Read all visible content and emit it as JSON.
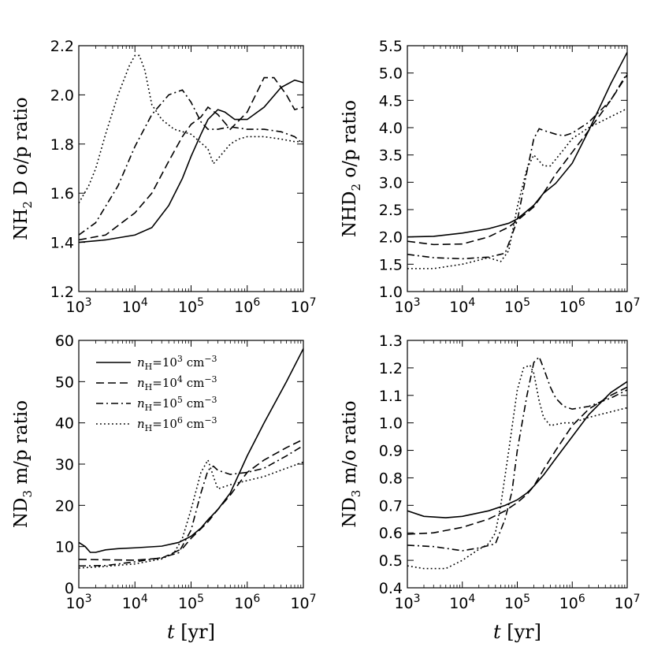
{
  "chart_data": [
    {
      "type": "line",
      "panel": "top-left",
      "xscale": "log",
      "xlim": [
        1000,
        10000000
      ],
      "xticks": [
        1000,
        10000,
        100000,
        1000000,
        10000000
      ],
      "x_tick_labels": [
        {
          "base": "10",
          "exp": "3"
        },
        {
          "base": "10",
          "exp": "4"
        },
        {
          "base": "10",
          "exp": "5"
        },
        {
          "base": "10",
          "exp": "6"
        },
        {
          "base": "10",
          "exp": "7"
        }
      ],
      "ylim": [
        1.2,
        2.2
      ],
      "yticks": [
        1.2,
        1.4,
        1.6,
        1.8,
        2.0,
        2.2
      ],
      "y_tick_labels": [
        "1.2",
        "1.4",
        "1.6",
        "1.8",
        "2.0",
        "2.2"
      ],
      "ylabel": {
        "pre": "NH",
        "sub": "2",
        "post": "D o/p ratio"
      },
      "xlabel": null,
      "series": [
        {
          "name": "nH=10^3 cm^-3",
          "style": "solid",
          "x": [
            1000,
            3000,
            10000,
            20000,
            40000,
            70000,
            100000,
            150000,
            200000,
            300000,
            400000,
            600000,
            1000000,
            2000000,
            4000000,
            7000000,
            10000000
          ],
          "y": [
            1.4,
            1.41,
            1.43,
            1.46,
            1.55,
            1.66,
            1.75,
            1.84,
            1.9,
            1.94,
            1.93,
            1.9,
            1.9,
            1.95,
            2.03,
            2.06,
            2.05
          ]
        },
        {
          "name": "nH=10^4 cm^-3",
          "style": "dashed",
          "x": [
            1000,
            3000,
            10000,
            20000,
            40000,
            70000,
            100000,
            150000,
            200000,
            300000,
            500000,
            1000000,
            2000000,
            3000000,
            5000000,
            7000000,
            10000000
          ],
          "y": [
            1.41,
            1.43,
            1.52,
            1.6,
            1.73,
            1.83,
            1.88,
            1.91,
            1.95,
            1.92,
            1.86,
            1.93,
            2.07,
            2.07,
            2.0,
            1.94,
            1.95
          ]
        },
        {
          "name": "nH=10^5 cm^-3",
          "style": "dashdot",
          "x": [
            1000,
            2000,
            5000,
            10000,
            20000,
            40000,
            70000,
            100000,
            150000,
            200000,
            300000,
            500000,
            1000000,
            2000000,
            4000000,
            7000000,
            10000000
          ],
          "y": [
            1.43,
            1.48,
            1.63,
            1.79,
            1.92,
            2.0,
            2.02,
            1.97,
            1.89,
            1.86,
            1.86,
            1.87,
            1.86,
            1.86,
            1.85,
            1.83,
            1.8
          ]
        },
        {
          "name": "nH=10^6 cm^-3",
          "style": "dotted",
          "x": [
            1000,
            1500,
            2000,
            3000,
            5000,
            8000,
            10000,
            12000,
            15000,
            20000,
            30000,
            50000,
            100000,
            200000,
            250000,
            300000,
            500000,
            700000,
            1000000,
            2000000,
            4000000,
            7000000,
            10000000
          ],
          "y": [
            1.56,
            1.63,
            1.7,
            1.84,
            2.0,
            2.12,
            2.16,
            2.16,
            2.1,
            1.96,
            1.9,
            1.86,
            1.84,
            1.78,
            1.72,
            1.74,
            1.8,
            1.82,
            1.83,
            1.83,
            1.82,
            1.81,
            1.81
          ]
        }
      ]
    },
    {
      "type": "line",
      "panel": "top-right",
      "xscale": "log",
      "xlim": [
        1000,
        10000000
      ],
      "xticks": [
        1000,
        10000,
        100000,
        1000000,
        10000000
      ],
      "x_tick_labels": [
        {
          "base": "10",
          "exp": "3"
        },
        {
          "base": "10",
          "exp": "4"
        },
        {
          "base": "10",
          "exp": "5"
        },
        {
          "base": "10",
          "exp": "6"
        },
        {
          "base": "10",
          "exp": "7"
        }
      ],
      "ylim": [
        1.0,
        5.5
      ],
      "yticks": [
        1.0,
        1.5,
        2.0,
        2.5,
        3.0,
        3.5,
        4.0,
        4.5,
        5.0,
        5.5
      ],
      "y_tick_labels": [
        "1.0",
        "1.5",
        "2.0",
        "2.5",
        "3.0",
        "3.5",
        "4.0",
        "4.5",
        "5.0",
        "5.5"
      ],
      "ylabel": {
        "pre": "NHD",
        "sub": "2",
        "post": "o/p ratio"
      },
      "xlabel": null,
      "series": [
        {
          "name": "nH=10^3 cm^-3",
          "style": "solid",
          "x": [
            1000,
            3000,
            10000,
            30000,
            70000,
            100000,
            200000,
            300000,
            500000,
            1000000,
            2000000,
            5000000,
            10000000
          ],
          "y": [
            2.0,
            2.01,
            2.07,
            2.15,
            2.25,
            2.33,
            2.58,
            2.8,
            2.98,
            3.35,
            3.95,
            4.8,
            5.38
          ]
        },
        {
          "name": "nH=10^4 cm^-3",
          "style": "dashed",
          "x": [
            1000,
            3000,
            10000,
            30000,
            70000,
            100000,
            200000,
            300000,
            500000,
            1000000,
            2000000,
            5000000,
            10000000
          ],
          "y": [
            1.92,
            1.86,
            1.87,
            2.0,
            2.18,
            2.3,
            2.55,
            2.8,
            3.15,
            3.55,
            3.95,
            4.5,
            4.97
          ]
        },
        {
          "name": "nH=10^5 cm^-3",
          "style": "dashdot",
          "x": [
            1000,
            3000,
            10000,
            30000,
            60000,
            100000,
            150000,
            200000,
            250000,
            300000,
            500000,
            700000,
            1000000,
            2000000,
            5000000,
            10000000
          ],
          "y": [
            1.68,
            1.62,
            1.6,
            1.63,
            1.7,
            2.3,
            3.2,
            3.8,
            3.98,
            3.95,
            3.88,
            3.85,
            3.9,
            4.1,
            4.5,
            5.0
          ]
        },
        {
          "name": "nH=10^6 cm^-3",
          "style": "dotted",
          "x": [
            1000,
            3000,
            10000,
            30000,
            50000,
            70000,
            100000,
            150000,
            200000,
            300000,
            400000,
            700000,
            1000000,
            2000000,
            5000000,
            10000000
          ],
          "y": [
            1.42,
            1.42,
            1.5,
            1.62,
            1.55,
            1.75,
            2.55,
            3.25,
            3.5,
            3.3,
            3.3,
            3.6,
            3.8,
            4.0,
            4.2,
            4.35
          ]
        }
      ]
    },
    {
      "type": "line",
      "panel": "bottom-left",
      "xscale": "log",
      "xlim": [
        1000,
        10000000
      ],
      "xticks": [
        1000,
        10000,
        100000,
        1000000,
        10000000
      ],
      "x_tick_labels": [
        {
          "base": "10",
          "exp": "3"
        },
        {
          "base": "10",
          "exp": "4"
        },
        {
          "base": "10",
          "exp": "5"
        },
        {
          "base": "10",
          "exp": "6"
        },
        {
          "base": "10",
          "exp": "7"
        }
      ],
      "ylim": [
        0,
        60
      ],
      "yticks": [
        0,
        10,
        20,
        30,
        40,
        50,
        60
      ],
      "y_tick_labels": [
        "0",
        "10",
        "20",
        "30",
        "40",
        "50",
        "60"
      ],
      "ylabel": {
        "pre": "ND",
        "sub": "3",
        "post": "m/p ratio"
      },
      "xlabel": {
        "var": "t",
        "unit": "[yr]"
      },
      "legend": {
        "placement": "upper-left",
        "entries": [
          {
            "label_base": "n",
            "label_sub": "H",
            "label_eq": "=10",
            "label_exp": "3",
            "label_unit": "cm",
            "label_unit_exp": "−3",
            "style": "solid"
          },
          {
            "label_base": "n",
            "label_sub": "H",
            "label_eq": "=10",
            "label_exp": "4",
            "label_unit": "cm",
            "label_unit_exp": "−3",
            "style": "dashed"
          },
          {
            "label_base": "n",
            "label_sub": "H",
            "label_eq": "=10",
            "label_exp": "5",
            "label_unit": "cm",
            "label_unit_exp": "−3",
            "style": "dashdot"
          },
          {
            "label_base": "n",
            "label_sub": "H",
            "label_eq": "=10",
            "label_exp": "6",
            "label_unit": "cm",
            "label_unit_exp": "−3",
            "style": "dotted"
          }
        ]
      },
      "series": [
        {
          "name": "nH=10^3 cm^-3",
          "style": "solid",
          "x": [
            1000,
            1300,
            1600,
            2000,
            3000,
            5000,
            10000,
            30000,
            60000,
            100000,
            150000,
            200000,
            300000,
            500000,
            1000000,
            2000000,
            5000000,
            10000000
          ],
          "y": [
            11.0,
            10.0,
            8.6,
            8.6,
            9.2,
            9.5,
            9.7,
            10.1,
            11.0,
            12.5,
            14.5,
            16.5,
            19.0,
            23.0,
            32.0,
            40.0,
            50.0,
            58.0
          ]
        },
        {
          "name": "nH=10^4 cm^-3",
          "style": "dashed",
          "x": [
            1000,
            3000,
            10000,
            30000,
            70000,
            100000,
            200000,
            300000,
            500000,
            1000000,
            2000000,
            5000000,
            10000000
          ],
          "y": [
            6.9,
            6.8,
            6.7,
            7.2,
            9.5,
            12.0,
            16.0,
            19.0,
            22.5,
            28.0,
            31.0,
            34.0,
            36.0
          ]
        },
        {
          "name": "nH=10^5 cm^-3",
          "style": "dashdot",
          "x": [
            1000,
            3000,
            10000,
            30000,
            60000,
            100000,
            150000,
            200000,
            250000,
            300000,
            500000,
            1000000,
            2000000,
            5000000,
            10000000
          ],
          "y": [
            5.3,
            5.4,
            6.3,
            7.3,
            8.5,
            14.0,
            23.0,
            28.5,
            29.5,
            28.5,
            27.5,
            28.0,
            29.0,
            32.0,
            34.5
          ]
        },
        {
          "name": "nH=10^6 cm^-3",
          "style": "dotted",
          "x": [
            1000,
            3000,
            10000,
            30000,
            50000,
            70000,
            100000,
            150000,
            200000,
            250000,
            300000,
            500000,
            1000000,
            2000000,
            5000000,
            10000000
          ],
          "y": [
            4.8,
            5.2,
            5.8,
            7.0,
            8.5,
            12.0,
            19.0,
            28.0,
            31.0,
            27.0,
            24.0,
            25.0,
            26.0,
            27.0,
            29.0,
            30.5
          ]
        }
      ]
    },
    {
      "type": "line",
      "panel": "bottom-right",
      "xscale": "log",
      "xlim": [
        1000,
        10000000
      ],
      "xticks": [
        1000,
        10000,
        100000,
        1000000,
        10000000
      ],
      "x_tick_labels": [
        {
          "base": "10",
          "exp": "3"
        },
        {
          "base": "10",
          "exp": "4"
        },
        {
          "base": "10",
          "exp": "5"
        },
        {
          "base": "10",
          "exp": "6"
        },
        {
          "base": "10",
          "exp": "7"
        }
      ],
      "ylim": [
        0.4,
        1.3
      ],
      "yticks": [
        0.4,
        0.5,
        0.6,
        0.7,
        0.8,
        0.9,
        1.0,
        1.1,
        1.2,
        1.3
      ],
      "y_tick_labels": [
        "0.4",
        "0.5",
        "0.6",
        "0.7",
        "0.8",
        "0.9",
        "1.0",
        "1.1",
        "1.2",
        "1.3"
      ],
      "ylabel": {
        "pre": "ND",
        "sub": "3",
        "post": "m/o ratio"
      },
      "xlabel": {
        "var": "t",
        "unit": "[yr]"
      },
      "series": [
        {
          "name": "nH=10^3 cm^-3",
          "style": "solid",
          "x": [
            1000,
            2000,
            5000,
            10000,
            30000,
            60000,
            100000,
            150000,
            200000,
            300000,
            500000,
            1000000,
            2000000,
            5000000,
            10000000
          ],
          "y": [
            0.68,
            0.66,
            0.655,
            0.66,
            0.68,
            0.7,
            0.72,
            0.745,
            0.77,
            0.81,
            0.87,
            0.95,
            1.03,
            1.11,
            1.15
          ]
        },
        {
          "name": "nH=10^4 cm^-3",
          "style": "dashed",
          "x": [
            1000,
            3000,
            10000,
            30000,
            60000,
            100000,
            150000,
            200000,
            300000,
            500000,
            1000000,
            2000000,
            5000000,
            10000000
          ],
          "y": [
            0.595,
            0.6,
            0.62,
            0.65,
            0.68,
            0.71,
            0.74,
            0.77,
            0.83,
            0.9,
            0.99,
            1.05,
            1.1,
            1.13
          ]
        },
        {
          "name": "nH=10^5 cm^-3",
          "style": "dashdot",
          "x": [
            1000,
            3000,
            10000,
            20000,
            40000,
            60000,
            80000,
            100000,
            150000,
            200000,
            250000,
            300000,
            400000,
            500000,
            700000,
            1000000,
            2000000,
            5000000,
            10000000
          ],
          "y": [
            0.555,
            0.55,
            0.535,
            0.545,
            0.56,
            0.65,
            0.75,
            0.9,
            1.1,
            1.22,
            1.24,
            1.2,
            1.13,
            1.09,
            1.06,
            1.05,
            1.06,
            1.09,
            1.12
          ]
        },
        {
          "name": "nH=10^6 cm^-3",
          "style": "dotted",
          "x": [
            1000,
            2000,
            5000,
            10000,
            20000,
            30000,
            40000,
            50000,
            70000,
            100000,
            130000,
            170000,
            200000,
            250000,
            300000,
            400000,
            700000,
            1000000,
            2000000,
            5000000,
            10000000
          ],
          "y": [
            0.48,
            0.47,
            0.47,
            0.5,
            0.54,
            0.56,
            0.6,
            0.7,
            0.9,
            1.12,
            1.2,
            1.21,
            1.18,
            1.08,
            1.02,
            0.99,
            1.0,
            1.0,
            1.02,
            1.04,
            1.055
          ]
        }
      ]
    }
  ]
}
